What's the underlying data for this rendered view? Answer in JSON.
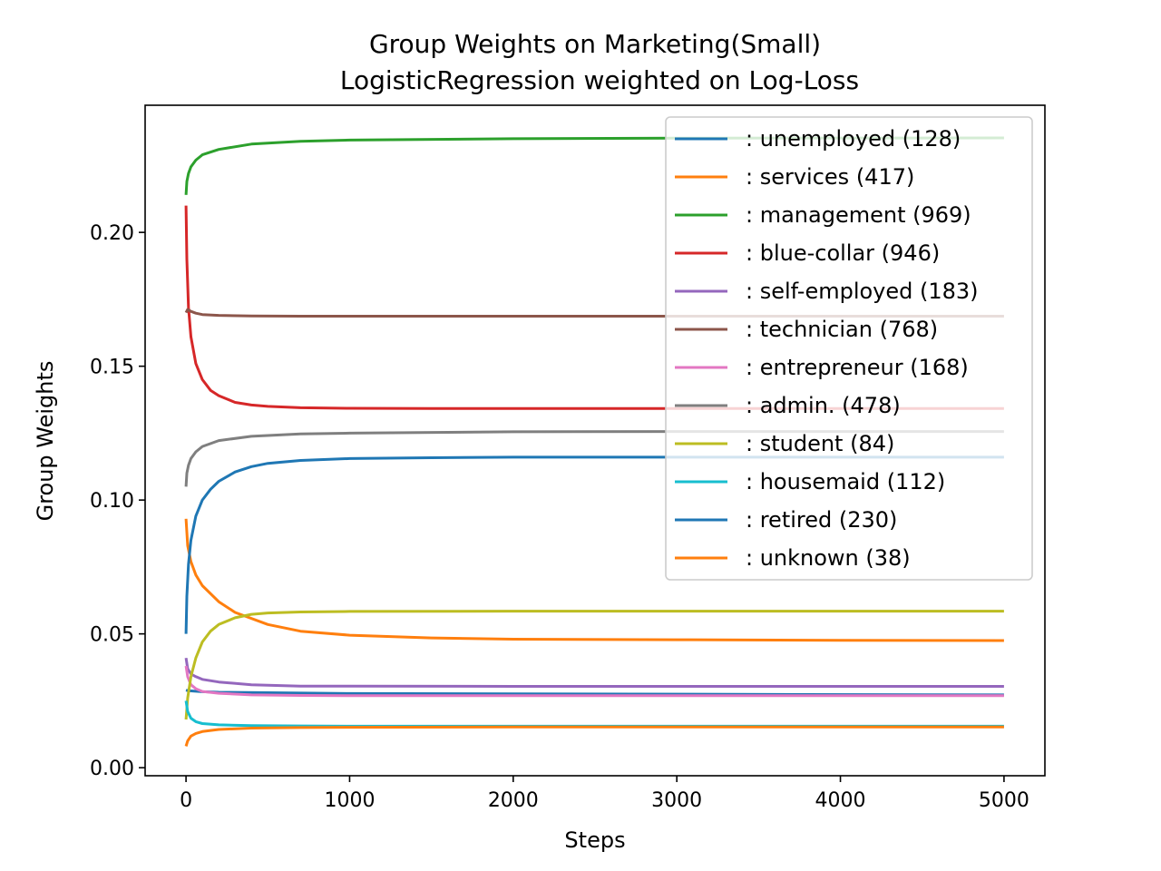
{
  "chart_data": {
    "type": "line",
    "title": "Group Weights on Marketing(Small)",
    "subtitle": "LogisticRegression weighted on Log-Loss",
    "xlabel": "Steps",
    "ylabel": "Group Weights",
    "xlim": [
      -250,
      5250
    ],
    "ylim": [
      -0.003,
      0.2475
    ],
    "xticks": [
      0,
      1000,
      2000,
      3000,
      4000,
      5000
    ],
    "xtick_labels": [
      "0",
      "1000",
      "2000",
      "3000",
      "4000",
      "5000"
    ],
    "yticks": [
      0.0,
      0.05,
      0.1,
      0.15,
      0.2
    ],
    "ytick_labels": [
      "0.00",
      "0.05",
      "0.10",
      "0.15",
      "0.20"
    ],
    "grid": false,
    "legend_position": "top-right",
    "series": [
      {
        "name": ": unemployed  (128)",
        "color": "#1f77b4",
        "x": [
          0,
          10,
          50,
          100,
          200,
          500,
          1000,
          5000
        ],
        "values": [
          0.029,
          0.0288,
          0.0286,
          0.0284,
          0.0282,
          0.028,
          0.0277,
          0.0272
        ]
      },
      {
        "name": ": services  (417)",
        "color": "#ff7f0e",
        "x": [
          0,
          10,
          30,
          60,
          100,
          200,
          300,
          500,
          700,
          1000,
          1500,
          2000,
          3000,
          4000,
          5000
        ],
        "values": [
          0.093,
          0.083,
          0.077,
          0.072,
          0.068,
          0.062,
          0.058,
          0.0535,
          0.051,
          0.0495,
          0.0485,
          0.048,
          0.0478,
          0.0476,
          0.0475
        ]
      },
      {
        "name": ": management  (969)",
        "color": "#2ca02c",
        "x": [
          0,
          5,
          15,
          30,
          60,
          100,
          200,
          400,
          700,
          1000,
          2000,
          3000,
          5000
        ],
        "values": [
          0.214,
          0.219,
          0.222,
          0.2245,
          0.227,
          0.229,
          0.231,
          0.233,
          0.234,
          0.2345,
          0.235,
          0.2352,
          0.2353
        ]
      },
      {
        "name": ": blue-collar  (946)",
        "color": "#d62728",
        "x": [
          0,
          5,
          15,
          30,
          60,
          100,
          150,
          200,
          300,
          400,
          500,
          700,
          1000,
          1500,
          2000,
          5000
        ],
        "values": [
          0.21,
          0.19,
          0.172,
          0.161,
          0.151,
          0.145,
          0.141,
          0.139,
          0.1365,
          0.1355,
          0.135,
          0.1345,
          0.1343,
          0.1342,
          0.1342,
          0.1342
        ]
      },
      {
        "name": ": self-employed  (183)",
        "color": "#9467bd",
        "x": [
          0,
          10,
          30,
          60,
          100,
          200,
          400,
          700,
          1000,
          2000,
          5000
        ],
        "values": [
          0.041,
          0.037,
          0.035,
          0.034,
          0.033,
          0.032,
          0.031,
          0.0305,
          0.0305,
          0.0304,
          0.0304
        ]
      },
      {
        "name": ": technician  (768)",
        "color": "#8c564b",
        "x": [
          0,
          10,
          30,
          60,
          100,
          200,
          400,
          700,
          1000,
          5000
        ],
        "values": [
          0.17,
          0.1712,
          0.1705,
          0.1698,
          0.1693,
          0.169,
          0.1688,
          0.1687,
          0.1687,
          0.1687
        ]
      },
      {
        "name": ": entrepreneur  (168)",
        "color": "#e377c2",
        "x": [
          0,
          10,
          30,
          60,
          100,
          200,
          400,
          700,
          1000,
          2000,
          5000
        ],
        "values": [
          0.038,
          0.034,
          0.031,
          0.0295,
          0.0285,
          0.0278,
          0.0272,
          0.027,
          0.0269,
          0.0269,
          0.0269
        ]
      },
      {
        "name": ": admin.  (478)",
        "color": "#7f7f7f",
        "x": [
          0,
          5,
          15,
          30,
          60,
          100,
          200,
          400,
          700,
          1000,
          2000,
          3000,
          5000
        ],
        "values": [
          0.105,
          0.11,
          0.113,
          0.1155,
          0.118,
          0.12,
          0.1222,
          0.1238,
          0.1247,
          0.125,
          0.1255,
          0.1256,
          0.1256
        ]
      },
      {
        "name": ": student  (84)",
        "color": "#bcbd22",
        "x": [
          0,
          10,
          30,
          60,
          100,
          150,
          200,
          300,
          400,
          500,
          700,
          1000,
          2000,
          3000,
          5000
        ],
        "values": [
          0.018,
          0.026,
          0.034,
          0.041,
          0.047,
          0.051,
          0.0535,
          0.056,
          0.0573,
          0.0578,
          0.0582,
          0.0584,
          0.0585,
          0.0585,
          0.0585
        ]
      },
      {
        "name": ": housemaid  (112)",
        "color": "#17becf",
        "x": [
          0,
          10,
          30,
          60,
          100,
          200,
          400,
          700,
          1000,
          2000,
          5000
        ],
        "values": [
          0.025,
          0.021,
          0.0185,
          0.0172,
          0.0165,
          0.016,
          0.0157,
          0.0156,
          0.0155,
          0.0155,
          0.0155
        ]
      },
      {
        "name": ": retired  (230)",
        "color": "#1f77b4",
        "x": [
          0,
          5,
          15,
          30,
          60,
          100,
          150,
          200,
          300,
          400,
          500,
          700,
          1000,
          1500,
          2000,
          3000,
          5000
        ],
        "values": [
          0.05,
          0.064,
          0.076,
          0.085,
          0.094,
          0.1,
          0.104,
          0.107,
          0.1105,
          0.1125,
          0.1137,
          0.1148,
          0.1155,
          0.1158,
          0.116,
          0.116,
          0.116
        ]
      },
      {
        "name": ": unknown  (38)",
        "color": "#ff7f0e",
        "x": [
          0,
          10,
          30,
          60,
          100,
          200,
          400,
          700,
          1000,
          2000,
          5000
        ],
        "values": [
          0.008,
          0.01,
          0.0118,
          0.0128,
          0.0135,
          0.0143,
          0.0148,
          0.015,
          0.0151,
          0.0152,
          0.0152
        ]
      }
    ]
  }
}
